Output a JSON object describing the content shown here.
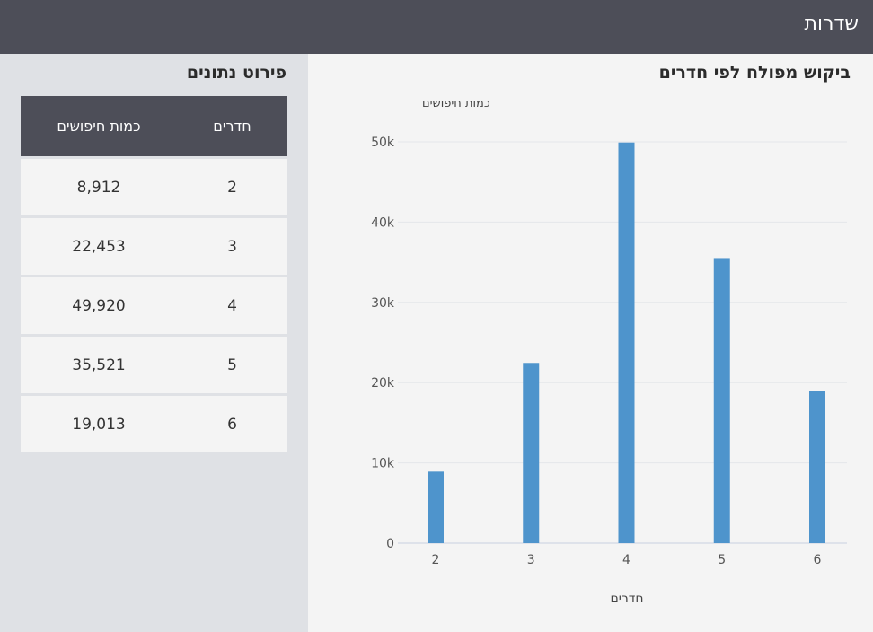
{
  "header": {
    "title": "שדרות"
  },
  "table": {
    "title": "פירוט נתונים",
    "columns": [
      "חדרים",
      "כמות חיפושים"
    ],
    "rows": [
      [
        "2",
        "8,912"
      ],
      [
        "3",
        "22,453"
      ],
      [
        "4",
        "49,920"
      ],
      [
        "5",
        "35,521"
      ],
      [
        "6",
        "19,013"
      ]
    ]
  },
  "colors": {
    "bar": "#4e94cc",
    "header_bg": "#4d4e58",
    "side_bg": "#dfe1e5"
  },
  "chart_data": {
    "type": "bar",
    "title": "ביקוש מפולח לפי חדרים",
    "xlabel": "חדרים",
    "ylabel": "כמות חיפושים",
    "categories": [
      "2",
      "3",
      "4",
      "5",
      "6"
    ],
    "values": [
      8912,
      22453,
      49920,
      35521,
      19013
    ],
    "ylim": [
      0,
      50000
    ],
    "yticks": [
      "0",
      "10k",
      "20k",
      "30k",
      "40k",
      "50k"
    ],
    "grid": true,
    "legend": "none"
  }
}
